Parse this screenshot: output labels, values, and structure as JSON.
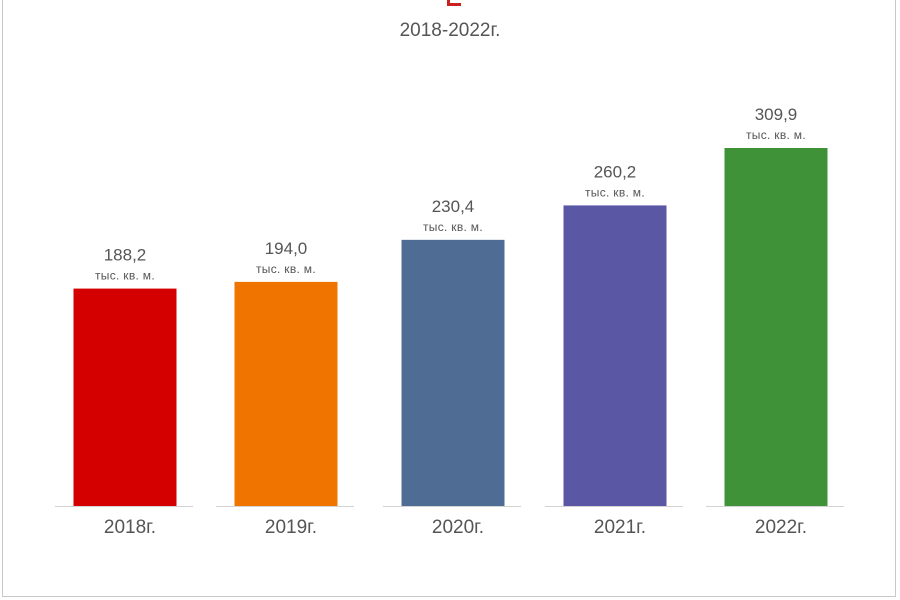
{
  "subtitle": "2018-2022г.",
  "chart_data": {
    "type": "bar",
    "categories": [
      "2018г.",
      "2019г.",
      "2020г.",
      "2021г.",
      "2022г."
    ],
    "values": [
      188.2,
      194.0,
      230.4,
      260.2,
      309.9
    ],
    "value_labels": [
      "188,2",
      "194,0",
      "230,4",
      "260,2",
      "309,9"
    ],
    "unit_label": "тыс. кв. м.",
    "colors": [
      "#d40000",
      "#ef7400",
      "#4f6d94",
      "#5a57a5",
      "#3f9237"
    ],
    "ylim": [
      0,
      330
    ],
    "grid": false,
    "legend": "none"
  }
}
